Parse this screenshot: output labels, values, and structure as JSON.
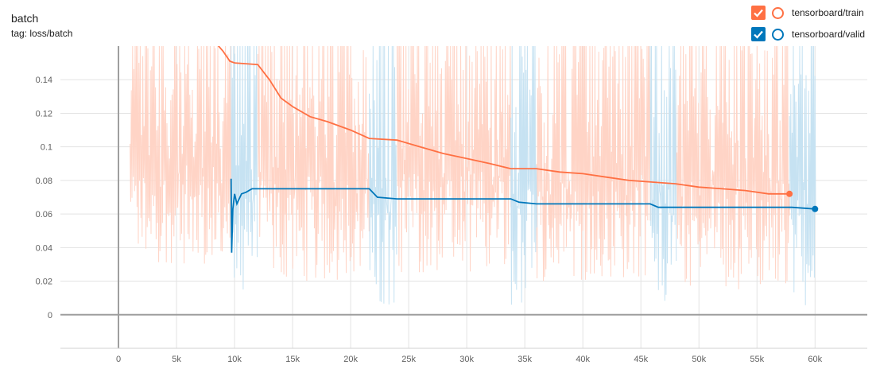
{
  "header": {
    "title": "batch",
    "tag": "tag: loss/batch"
  },
  "legend": {
    "items": [
      {
        "label": "tensorboard/train",
        "color": "#ff7043",
        "checked": true
      },
      {
        "label": "tensorboard/valid",
        "color": "#0077bb",
        "checked": true
      }
    ]
  },
  "chart_data": {
    "type": "line",
    "title": "batch",
    "subtitle": "tag: loss/batch",
    "xlabel": "",
    "ylabel": "",
    "xlim": [
      -5000,
      64500
    ],
    "ylim": [
      -0.02,
      0.16
    ],
    "x_ticks": [
      0,
      5000,
      10000,
      15000,
      20000,
      25000,
      30000,
      35000,
      40000,
      45000,
      50000,
      55000,
      60000
    ],
    "x_tick_labels": [
      "0",
      "5k",
      "10k",
      "15k",
      "20k",
      "25k",
      "30k",
      "35k",
      "40k",
      "45k",
      "50k",
      "55k",
      "60k"
    ],
    "y_ticks": [
      0,
      0.02,
      0.04,
      0.06,
      0.08,
      0.1,
      0.12,
      0.14
    ],
    "y_tick_labels": [
      "0",
      "0.02",
      "0.04",
      "0.06",
      "0.08",
      "0.1",
      "0.12",
      "0.14"
    ],
    "grid": true,
    "legend_position": "top-right",
    "series": [
      {
        "name": "tensorboard/train",
        "color": "#ff7043",
        "raw_color": "#ffd4c6",
        "smoothed": [
          [
            8500,
            0.161
          ],
          [
            9000,
            0.157
          ],
          [
            9600,
            0.151
          ],
          [
            10000,
            0.15
          ],
          [
            12000,
            0.149
          ],
          [
            13000,
            0.14
          ],
          [
            14000,
            0.129
          ],
          [
            15000,
            0.124
          ],
          [
            16500,
            0.118
          ],
          [
            18000,
            0.115
          ],
          [
            20000,
            0.11
          ],
          [
            21600,
            0.105
          ],
          [
            24000,
            0.104
          ],
          [
            26000,
            0.1
          ],
          [
            28000,
            0.096
          ],
          [
            30000,
            0.093
          ],
          [
            32000,
            0.09
          ],
          [
            33800,
            0.087
          ],
          [
            36000,
            0.087
          ],
          [
            38000,
            0.085
          ],
          [
            40000,
            0.084
          ],
          [
            42000,
            0.082
          ],
          [
            44000,
            0.08
          ],
          [
            46000,
            0.079
          ],
          [
            48000,
            0.078
          ],
          [
            50000,
            0.076
          ],
          [
            52000,
            0.075
          ],
          [
            54000,
            0.074
          ],
          [
            56000,
            0.072
          ],
          [
            57500,
            0.072
          ],
          [
            57800,
            0.072
          ]
        ],
        "raw_band": [
          {
            "x": [
              1000,
              9700
            ],
            "low": 0.03,
            "high": 0.161
          },
          {
            "x": [
              12000,
              21600
            ],
            "low": 0.02,
            "high": 0.161
          },
          {
            "x": [
              24000,
              33800
            ],
            "low": 0.025,
            "high": 0.161
          },
          {
            "x": [
              36000,
              45800
            ],
            "low": 0.02,
            "high": 0.161
          },
          {
            "x": [
              48000,
              57800
            ],
            "low": 0.015,
            "high": 0.161
          }
        ]
      },
      {
        "name": "tensorboard/valid",
        "color": "#0077bb",
        "raw_color": "#c6e2f2",
        "smoothed": [
          [
            9700,
            0.081
          ],
          [
            9750,
            0.037
          ],
          [
            9850,
            0.063
          ],
          [
            10000,
            0.072
          ],
          [
            10200,
            0.066
          ],
          [
            10600,
            0.072
          ],
          [
            11000,
            0.073
          ],
          [
            11500,
            0.075
          ],
          [
            12000,
            0.075
          ],
          [
            21600,
            0.075
          ],
          [
            22300,
            0.07
          ],
          [
            24000,
            0.069
          ],
          [
            33800,
            0.069
          ],
          [
            34500,
            0.067
          ],
          [
            36000,
            0.066
          ],
          [
            45800,
            0.066
          ],
          [
            46500,
            0.064
          ],
          [
            48000,
            0.064
          ],
          [
            58000,
            0.064
          ],
          [
            60000,
            0.063
          ]
        ],
        "raw_band": [
          {
            "x": [
              9700,
              12000
            ],
            "low": 0.005,
            "high": 0.161
          },
          {
            "x": [
              21600,
              24000
            ],
            "low": 0.005,
            "high": 0.161
          },
          {
            "x": [
              33800,
              36000
            ],
            "low": 0.005,
            "high": 0.161
          },
          {
            "x": [
              45800,
              48000
            ],
            "low": 0.004,
            "high": 0.161
          },
          {
            "x": [
              57800,
              60000
            ],
            "low": 0.004,
            "high": 0.161
          }
        ]
      }
    ]
  }
}
